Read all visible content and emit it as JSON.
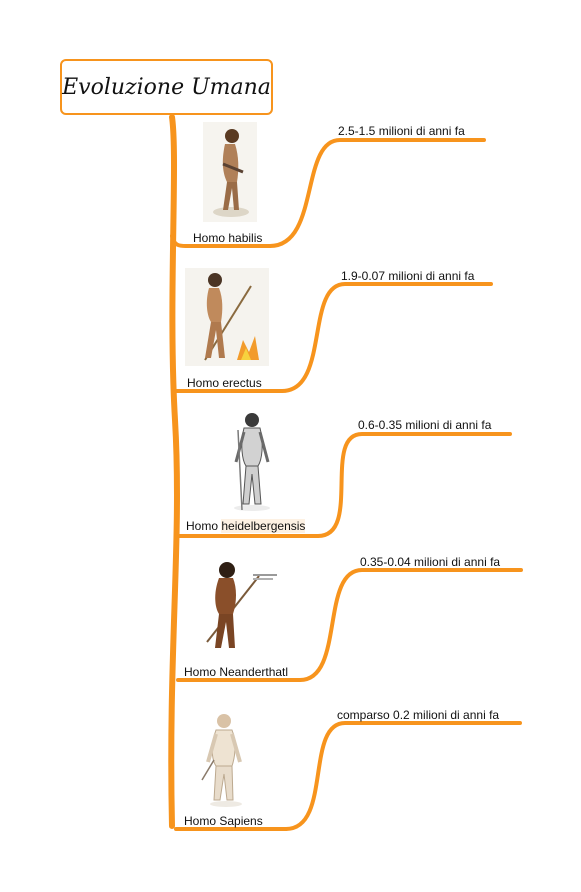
{
  "title": "Evoluzione Umana",
  "colors": {
    "branch": "#f7941d",
    "text": "#111111",
    "highlight": "#fdf1e3"
  },
  "nodes": [
    {
      "name": "Homo habilis",
      "date": "2.5-1.5 milioni di anni fa",
      "icon": "homo-habilis-figure"
    },
    {
      "name": "Homo erectus",
      "date": "1.9-0.07 milioni di anni fa",
      "icon": "homo-erectus-figure-with-fire"
    },
    {
      "name_prefix": "Homo ",
      "name_highlight": "heidelbergensis",
      "date": "0.6-0.35 milioni di anni fa",
      "icon": "homo-heidelbergensis-sketch"
    },
    {
      "name": "Homo Neanderthatl",
      "date": "0.35-0.04 milioni di anni fa",
      "icon": "homo-neanderthal-figure"
    },
    {
      "name": "Homo Sapiens",
      "date": "comparso 0.2 milioni di anni fa",
      "icon": "homo-sapiens-figure"
    }
  ]
}
